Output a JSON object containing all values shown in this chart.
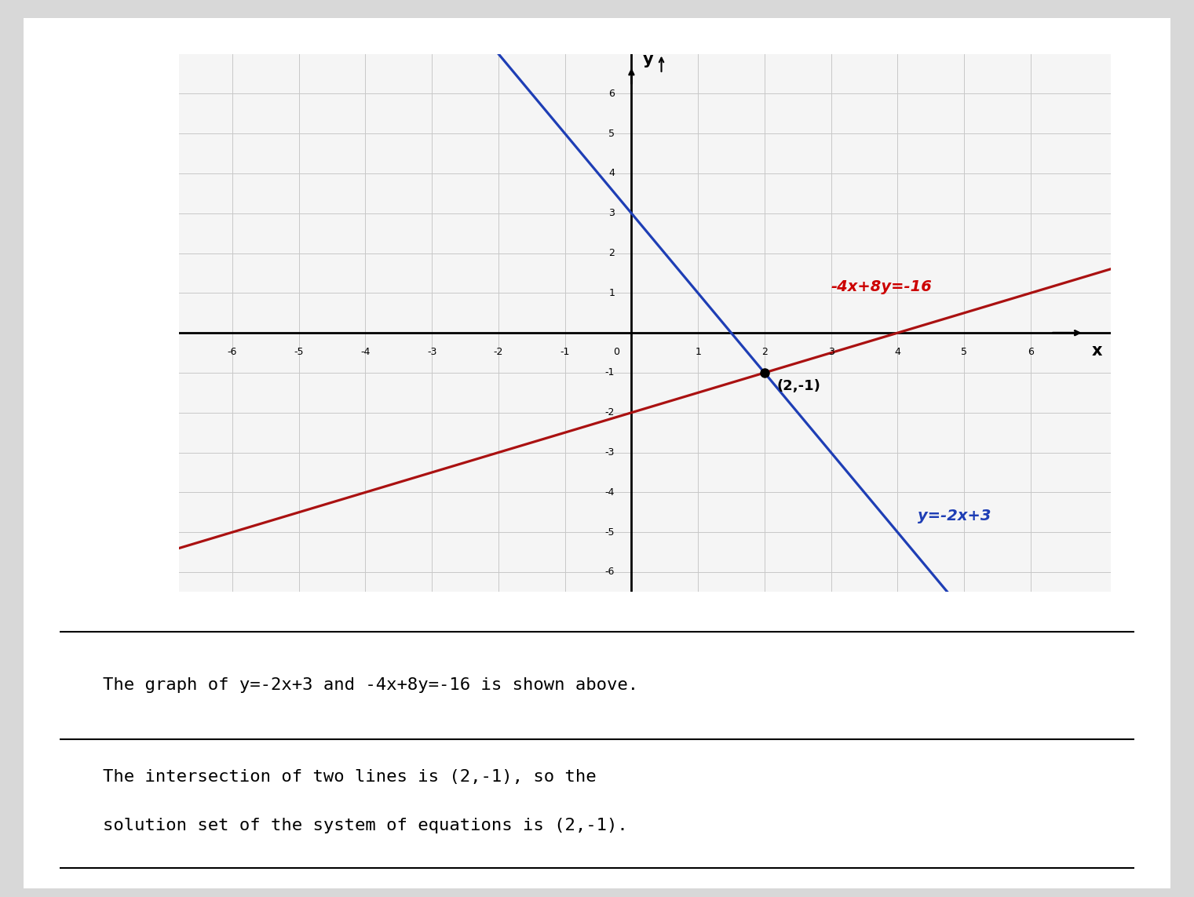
{
  "xlim": [
    -6.8,
    7.2
  ],
  "ylim": [
    -6.5,
    7.0
  ],
  "xticks": [
    -6,
    -5,
    -4,
    -3,
    -2,
    -1,
    0,
    1,
    2,
    3,
    4,
    5,
    6
  ],
  "yticks": [
    -6,
    -5,
    -4,
    -3,
    -2,
    -1,
    1,
    2,
    3,
    4,
    5,
    6
  ],
  "line1_color": "#1e3eb5",
  "line2_color": "#aa1111",
  "intersection": [
    2,
    -1
  ],
  "intersection_color": "#000000",
  "line1_label": "y=-2x+3",
  "line2_label": "-4x+8y=-16",
  "label1_color": "#1e3eb5",
  "label2_color": "#cc0000",
  "bg_color": "#f5f5f5",
  "card_bg": "#ffffff",
  "outer_bg": "#d8d8d8",
  "text_line1": "The graph of y=-2x+3 and -4x+8y=-16 is shown above.",
  "text_line2": "The intersection of two lines is (2,-1), so the",
  "text_line3": "solution set of the system of equations is (2,-1).",
  "grid_color": "#c8c8c8",
  "axis_color": "#000000",
  "card_edge_color": "#444444",
  "graph_box_color": "#888888"
}
